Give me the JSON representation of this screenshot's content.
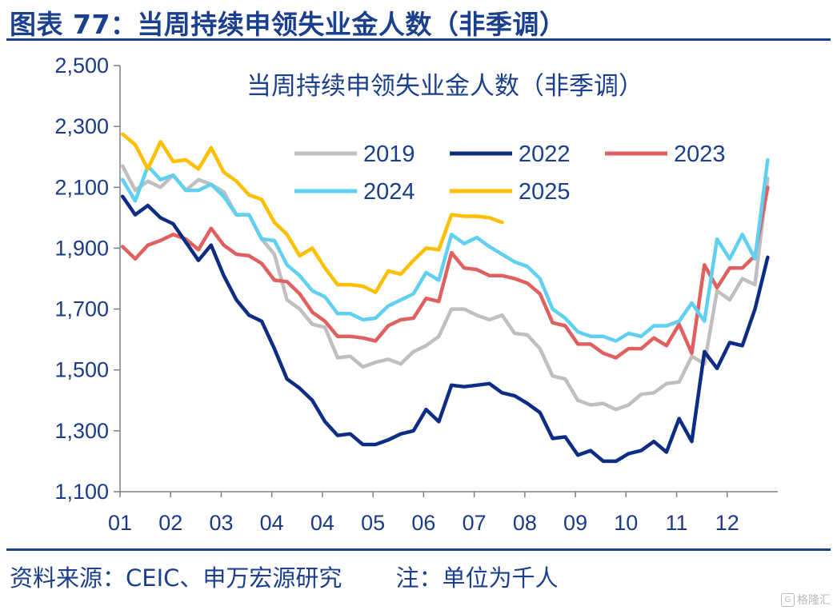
{
  "figure": {
    "title": "图表 77：当周持续申领失业金人数（非季调）",
    "source": "资料来源：CEIC、申万宏源研究",
    "unit_note": "注：单位为千人",
    "watermark": "格隆汇",
    "watermark_icon": "G"
  },
  "chart_data": {
    "type": "line",
    "title": "当周持续申领失业金人数（非季调）",
    "xlabel": "",
    "ylabel": "",
    "ylim": [
      1100,
      2500
    ],
    "xlim": [
      0,
      52
    ],
    "y_ticks": [
      1100,
      1300,
      1500,
      1700,
      1900,
      2100,
      2300,
      2500
    ],
    "y_tick_labels": [
      "1,100",
      "1,300",
      "1,500",
      "1,700",
      "1,900",
      "2,100",
      "2,300",
      "2,500"
    ],
    "x_ticks": [
      0,
      4,
      8,
      12,
      16,
      20,
      24,
      28,
      32,
      36,
      40,
      44,
      48
    ],
    "x_tick_labels": [
      "01",
      "02",
      "03",
      "04",
      "04",
      "05",
      "06",
      "07",
      "08",
      "09",
      "10",
      "11",
      "12"
    ],
    "legend_position": "upper-center",
    "series": [
      {
        "name": "2019",
        "color": "#bfbfbf",
        "values": [
          2170,
          2090,
          2120,
          2100,
          2140,
          2090,
          2125,
          2110,
          2085,
          2010,
          2010,
          1930,
          1880,
          1730,
          1700,
          1650,
          1640,
          1540,
          1545,
          1510,
          1525,
          1535,
          1520,
          1560,
          1580,
          1610,
          1700,
          1700,
          1680,
          1665,
          1680,
          1620,
          1615,
          1570,
          1480,
          1470,
          1400,
          1385,
          1390,
          1370,
          1385,
          1420,
          1425,
          1455,
          1460,
          1545,
          1520,
          1760,
          1730,
          1800,
          1780,
          2130
        ]
      },
      {
        "name": "2022",
        "color": "#0d2c84",
        "values": [
          2070,
          2010,
          2040,
          2000,
          1980,
          1920,
          1860,
          1910,
          1810,
          1730,
          1680,
          1660,
          1570,
          1470,
          1440,
          1400,
          1330,
          1285,
          1290,
          1255,
          1255,
          1270,
          1290,
          1300,
          1370,
          1330,
          1450,
          1445,
          1450,
          1455,
          1425,
          1415,
          1390,
          1360,
          1275,
          1280,
          1220,
          1235,
          1200,
          1200,
          1225,
          1235,
          1265,
          1230,
          1340,
          1265,
          1560,
          1505,
          1590,
          1580,
          1700,
          1870
        ]
      },
      {
        "name": "2023",
        "color": "#e06060",
        "values": [
          1905,
          1865,
          1910,
          1925,
          1945,
          1930,
          1895,
          1965,
          1910,
          1880,
          1875,
          1850,
          1795,
          1790,
          1750,
          1690,
          1660,
          1610,
          1610,
          1605,
          1595,
          1645,
          1665,
          1670,
          1735,
          1725,
          1885,
          1835,
          1830,
          1810,
          1810,
          1800,
          1785,
          1750,
          1655,
          1645,
          1585,
          1585,
          1555,
          1540,
          1570,
          1570,
          1605,
          1580,
          1650,
          1555,
          1845,
          1770,
          1835,
          1835,
          1875,
          2100
        ]
      },
      {
        "name": "2024",
        "color": "#5fd0f0",
        "values": [
          2125,
          2055,
          2170,
          2125,
          2140,
          2090,
          2090,
          2110,
          2070,
          2010,
          2010,
          1930,
          1925,
          1845,
          1810,
          1760,
          1740,
          1685,
          1685,
          1665,
          1670,
          1710,
          1730,
          1750,
          1820,
          1795,
          1945,
          1915,
          1935,
          1905,
          1880,
          1855,
          1840,
          1800,
          1700,
          1670,
          1625,
          1610,
          1610,
          1595,
          1620,
          1610,
          1645,
          1645,
          1660,
          1720,
          1660,
          1930,
          1865,
          1945,
          1865,
          2190
        ]
      },
      {
        "name": "2025",
        "color": "#fdbf00",
        "values": [
          2275,
          2240,
          2160,
          2250,
          2185,
          2190,
          2160,
          2230,
          2150,
          2120,
          2075,
          2060,
          1985,
          1945,
          1875,
          1900,
          1835,
          1780,
          1780,
          1775,
          1755,
          1825,
          1815,
          1860,
          1900,
          1895,
          2010,
          2005,
          2005,
          2000,
          1985
        ]
      }
    ]
  }
}
